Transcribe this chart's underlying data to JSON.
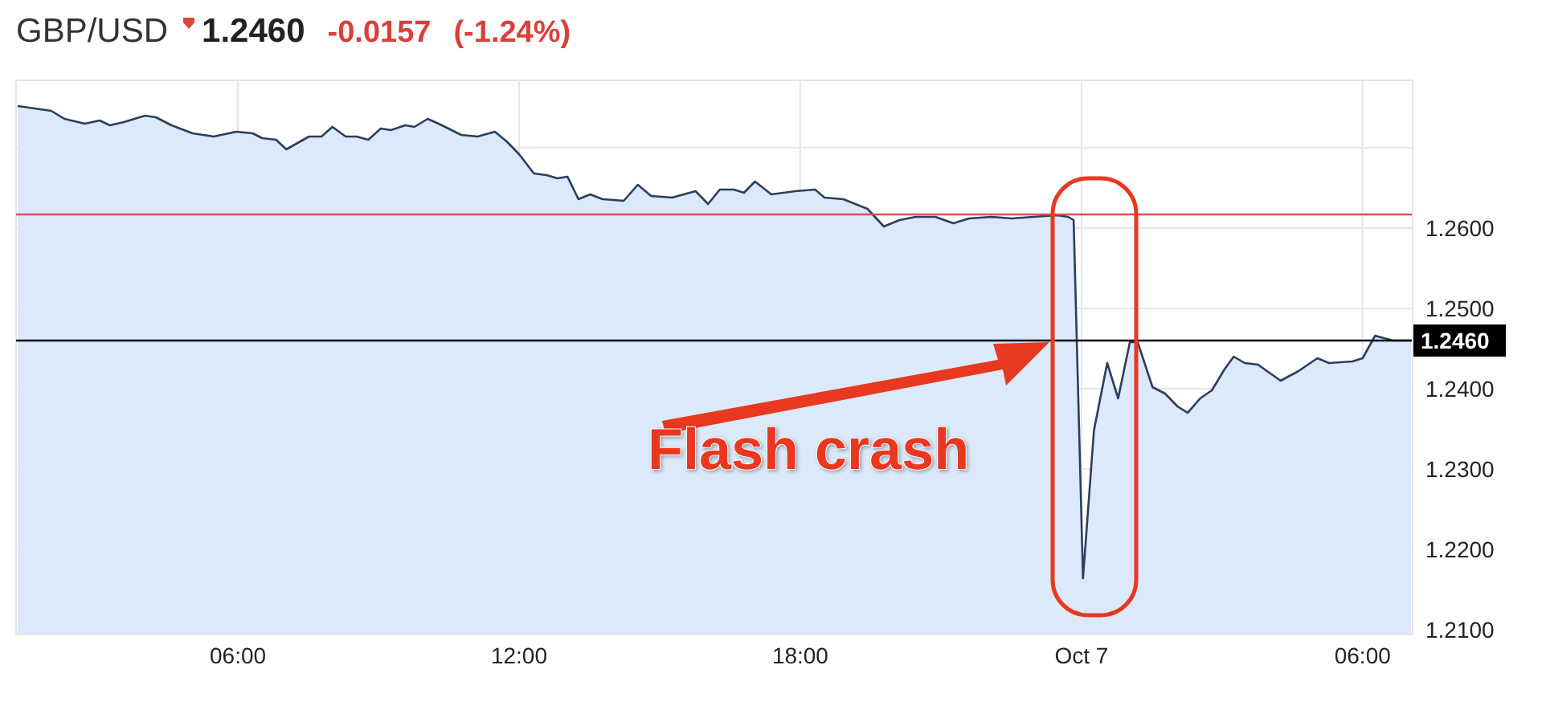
{
  "chart_data": {
    "type": "area",
    "title": "GBP/USD",
    "subtitle": "1.2460",
    "annotations": [
      "-0.0157",
      "(-1.24%)",
      "Flash crash"
    ],
    "x": [
      "--10-06T01:18",
      "--10-06T02:01",
      "--10-06T02:18",
      "--10-06T02:44",
      "--10-06T03:03",
      "--10-06T03:16",
      "--10-06T03:34",
      "--10-06T04:01",
      "--10-06T04:15",
      "--10-06T04:35",
      "--10-06T05:02",
      "--10-06T05:29",
      "--10-06T05:58",
      "--10-06T06:19",
      "--10-06T06:31",
      "--10-06T06:49",
      "--10-06T07:02",
      "--10-06T07:31",
      "--10-06T07:47",
      "--10-06T08:01",
      "--10-06T08:18",
      "--10-06T08:32",
      "--10-06T08:47",
      "--10-06T09:03",
      "--10-06T09:16",
      "--10-06T09:34",
      "--10-06T09:46",
      "--10-06T10:03",
      "--10-06T10:17",
      "--10-06T10:46",
      "--10-06T11:07",
      "--10-06T11:29",
      "--10-06T11:44",
      "--10-06T12:00",
      "--10-06T12:19",
      "--10-06T12:35",
      "--10-06T12:49",
      "--10-06T13:02",
      "--10-06T13:16",
      "--10-06T13:31",
      "--10-06T13:47",
      "--10-06T14:14",
      "--10-06T14:32",
      "--10-06T14:49",
      "--10-06T15:16",
      "--10-06T15:46",
      "--10-06T16:02",
      "--10-06T16:17",
      "--10-06T16:35",
      "--10-06T16:48",
      "--10-06T17:02",
      "--10-06T17:23",
      "--10-06T17:54",
      "--10-06T18:19",
      "--10-06T18:31",
      "--10-06T18:55",
      "--10-06T19:26",
      "--10-06T19:47",
      "--10-06T20:07",
      "--10-06T20:28",
      "--10-06T20:53",
      "--10-06T21:16",
      "--10-06T21:36",
      "--10-06T22:05",
      "--10-06T22:31",
      "--10-06T22:58",
      "--10-06T23:29",
      "--10-06T23:43",
      "--10-06T23:50",
      "--10-07T00:02",
      "--10-07T00:16",
      "--10-07T00:33",
      "--10-07T00:47",
      "--10-07T01:02",
      "--10-07T01:12",
      "--10-07T01:31",
      "--10-07T01:47",
      "--10-07T02:03",
      "--10-07T02:16",
      "--10-07T02:32",
      "--10-07T02:47",
      "--10-07T03:03",
      "--10-07T03:15",
      "--10-07T03:29",
      "--10-07T03:46",
      "--10-07T04:15",
      "--10-07T04:38",
      "--10-07T05:02",
      "--10-07T05:17",
      "--10-07T05:47",
      "--10-07T06:00",
      "--10-07T06:16",
      "--10-07T06:39",
      "--10-07T07:02"
    ],
    "series": [
      {
        "color": "#2c3e5c",
        "values": [
          1.2752,
          1.2746,
          1.2736,
          1.273,
          1.2734,
          1.2728,
          1.2732,
          1.274,
          1.2738,
          1.2728,
          1.2718,
          1.2714,
          1.272,
          1.2718,
          1.2712,
          1.271,
          1.2698,
          1.2714,
          1.2714,
          1.2726,
          1.2714,
          1.2714,
          1.271,
          1.2724,
          1.2722,
          1.2728,
          1.2726,
          1.2736,
          1.273,
          1.2716,
          1.2714,
          1.272,
          1.2708,
          1.2692,
          1.2668,
          1.2666,
          1.2662,
          1.2664,
          1.2636,
          1.2642,
          1.2636,
          1.2634,
          1.2654,
          1.264,
          1.2638,
          1.2646,
          1.263,
          1.2648,
          1.2648,
          1.2644,
          1.2658,
          1.2642,
          1.2646,
          1.2648,
          1.2638,
          1.2636,
          1.2624,
          1.2602,
          1.261,
          1.2614,
          1.2614,
          1.2606,
          1.2612,
          1.2614,
          1.2612,
          1.2614,
          1.2616,
          1.2614,
          1.261,
          1.2164,
          1.2348,
          1.2432,
          1.2388,
          1.2458,
          1.2458,
          1.2402,
          1.2394,
          1.2378,
          1.237,
          1.2388,
          1.2398,
          1.2424,
          1.244,
          1.2432,
          1.243,
          1.241,
          1.2422,
          1.2438,
          1.2432,
          1.2434,
          1.2438,
          1.2466,
          1.246,
          1.246
        ]
      }
    ],
    "xlim": [
      "--10-06T01:16",
      "--10-07T07:04"
    ],
    "xticks": [
      {
        "value": "--10-06T06:00",
        "label": "06:00"
      },
      {
        "value": "--10-06T12:00",
        "label": "12:00"
      },
      {
        "value": "--10-06T18:00",
        "label": "18:00"
      },
      {
        "value": "--10-07T00:00",
        "label": "Oct 7"
      },
      {
        "value": "--10-07T06:00",
        "label": "06:00"
      }
    ],
    "ylim": [
      1.2094,
      1.2784
    ],
    "yticks": [
      {
        "value": 1.21,
        "label": "1.2100"
      },
      {
        "value": 1.22,
        "label": "1.2200"
      },
      {
        "value": 1.23,
        "label": "1.2300"
      },
      {
        "value": 1.24,
        "label": "1.2400"
      },
      {
        "value": 1.25,
        "label": "1.2500"
      },
      {
        "value": 1.26,
        "label": "1.2600"
      },
      {
        "value": 1.27,
        "label": null
      }
    ],
    "ref_lines": [
      {
        "axis": "y",
        "value": 1.2617,
        "color": "#d9534f"
      },
      {
        "axis": "y",
        "value": 1.246,
        "label": "1.2460",
        "color": "#000000"
      }
    ],
    "grid": true,
    "marker": "none"
  }
}
